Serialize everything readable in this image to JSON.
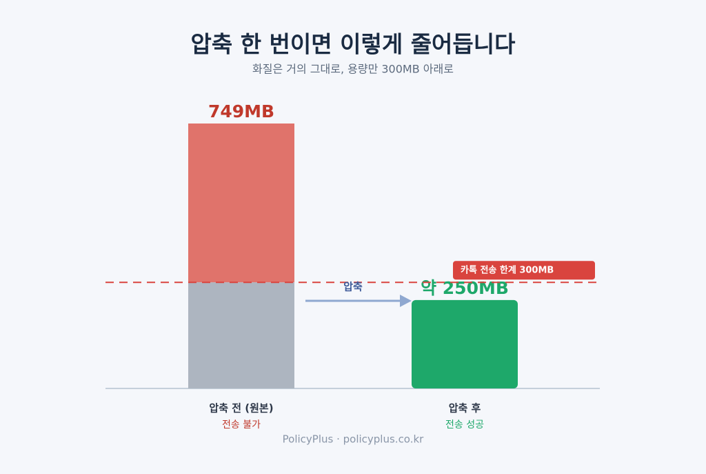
{
  "chart_data": {
    "type": "bar",
    "title": "압축 한 번이면 이렇게 줄어듭니다",
    "subtitle": "화질은 거의 그대로, 용량만 300MB 아래로",
    "categories": [
      "압축 전 (원본)",
      "압축 후"
    ],
    "category_notes": [
      "전송 불가",
      "전송 성공"
    ],
    "values": [
      749,
      250
    ],
    "value_labels": [
      "749MB",
      "약 250MB"
    ],
    "colors": [
      "#e0736b",
      "#1ea86a"
    ],
    "label_colors": [
      "#c0392b",
      "#1ea86a"
    ],
    "below_limit_color": "#adb5c0",
    "limit": {
      "value": 300,
      "label": "카톡 전송 한계 300MB",
      "color": "#d9443e"
    },
    "arrow_label": "압축"
  },
  "footer": "PolicyPlus · policyplus.co.kr"
}
